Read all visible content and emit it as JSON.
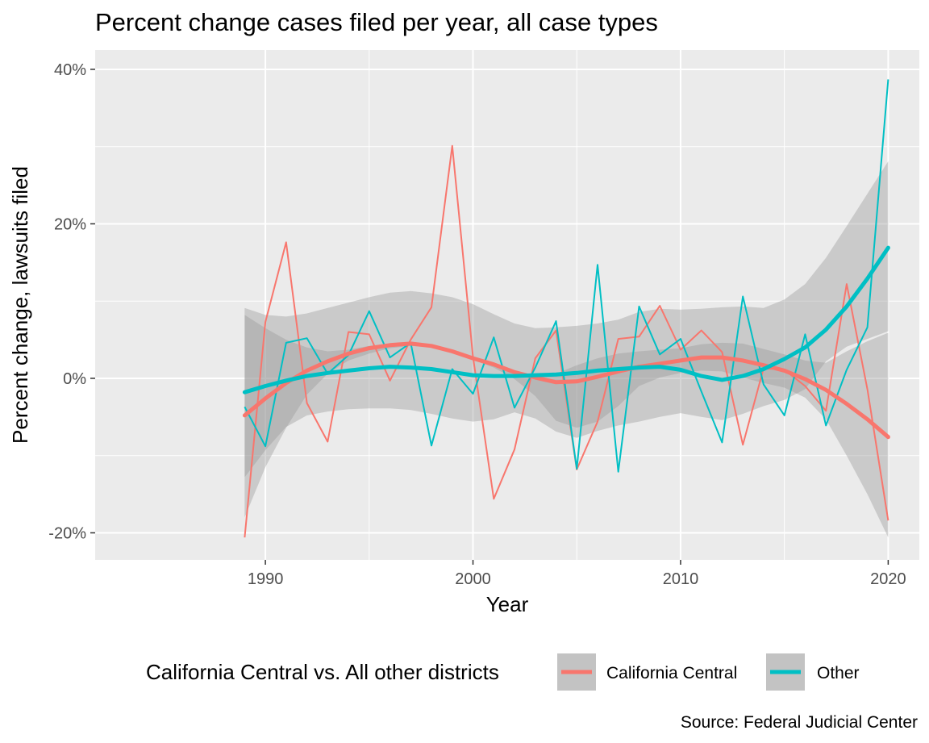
{
  "chart_data": {
    "type": "line",
    "title": "Percent change cases filed per year, all case types",
    "xlabel": "Year",
    "ylabel": "Percent change, lawsuits filed",
    "caption": "Source: Federal Judicial Center",
    "xlim": [
      1981.8,
      2021.5
    ],
    "ylim": [
      -23.5,
      42.5
    ],
    "x_ticks": [
      1990,
      2000,
      2010,
      2020
    ],
    "x_tick_labels": [
      "1990",
      "2000",
      "2010",
      "2020"
    ],
    "y_ticks": [
      -20,
      0,
      20,
      40
    ],
    "y_tick_labels": [
      "-20%",
      "0%",
      "20%",
      "40%"
    ],
    "grid": true,
    "legend": {
      "title": "California Central vs. All other districts",
      "position": "bottom",
      "entries": [
        {
          "label": "California Central",
          "color": "#F8766D"
        },
        {
          "label": "Other",
          "color": "#00BFC4"
        }
      ]
    },
    "x": [
      1989,
      1990,
      1991,
      1992,
      1993,
      1994,
      1995,
      1996,
      1997,
      1998,
      1999,
      2000,
      2001,
      2002,
      2003,
      2004,
      2005,
      2006,
      2007,
      2008,
      2009,
      2010,
      2011,
      2012,
      2013,
      2014,
      2015,
      2016,
      2017,
      2018,
      2019,
      2020
    ],
    "series": [
      {
        "name": "California Central",
        "color": "#F8766D",
        "values": [
          -20.6,
          7.3,
          17.6,
          -3.2,
          -8.2,
          6.0,
          5.7,
          -0.3,
          5.0,
          9.2,
          30.1,
          2.8,
          -15.6,
          -9.2,
          2.6,
          6.2,
          -11.8,
          -5.6,
          5.1,
          5.4,
          9.4,
          3.7,
          6.2,
          3.4,
          -8.6,
          1.3,
          1.1,
          -1.0,
          -4.2,
          12.2,
          -1.4,
          -18.4
        ],
        "smooth": [
          -4.8,
          -2.6,
          -0.6,
          1.0,
          2.2,
          3.2,
          3.9,
          4.3,
          4.5,
          4.2,
          3.5,
          2.6,
          1.8,
          0.8,
          0.1,
          -0.5,
          -0.4,
          0.2,
          0.9,
          1.5,
          1.9,
          2.3,
          2.7,
          2.7,
          2.3,
          1.7,
          1.0,
          -0.1,
          -1.5,
          -3.3,
          -5.3,
          -7.6
        ],
        "band_upper": [
          8.2,
          6.5,
          5.0,
          4.0,
          3.5,
          3.7,
          4.2,
          4.5,
          4.7,
          4.4,
          3.6,
          2.6,
          1.8,
          0.7,
          0.3,
          0.6,
          1.7,
          2.6,
          3.2,
          3.5,
          3.7,
          3.9,
          4.4,
          4.6,
          4.5,
          3.8,
          3.1,
          2.3,
          2.0,
          3.5,
          4.8,
          5.9
        ],
        "band_lower": [
          -18.0,
          -11.5,
          -6.4,
          -2.1,
          0.6,
          2.3,
          3.2,
          3.9,
          4.2,
          4.0,
          3.3,
          2.4,
          1.4,
          -0.1,
          -2.3,
          -5.5,
          -6.4,
          -5.6,
          -3.6,
          -1.0,
          0.1,
          0.7,
          1.0,
          0.9,
          0.1,
          -0.6,
          -1.2,
          -2.5,
          -5.3,
          -10.0,
          -15.0,
          -20.6
        ]
      },
      {
        "name": "Other",
        "color": "#00BFC4",
        "values": [
          -3.7,
          -8.8,
          4.6,
          5.2,
          0.6,
          3.0,
          8.7,
          2.7,
          4.6,
          -8.7,
          1.2,
          -2.0,
          5.3,
          -3.8,
          1.4,
          7.4,
          -11.7,
          14.7,
          -12.1,
          9.3,
          3.1,
          5.1,
          -1.7,
          -8.3,
          10.6,
          -0.8,
          -4.8,
          5.7,
          -6.1,
          1.1,
          6.6,
          38.7
        ],
        "smooth": [
          -1.8,
          -1.0,
          -0.3,
          0.3,
          0.7,
          1.0,
          1.3,
          1.5,
          1.4,
          1.2,
          0.8,
          0.4,
          0.3,
          0.3,
          0.4,
          0.5,
          0.7,
          1.0,
          1.2,
          1.4,
          1.5,
          1.1,
          0.3,
          -0.2,
          0.3,
          1.2,
          2.5,
          4.0,
          6.3,
          9.3,
          12.9,
          16.9
        ],
        "band_upper": [
          9.1,
          8.2,
          8.0,
          8.4,
          9.1,
          9.8,
          10.5,
          11.1,
          11.3,
          11.0,
          10.5,
          9.6,
          8.3,
          7.1,
          6.5,
          6.6,
          6.8,
          7.1,
          7.6,
          8.6,
          9.0,
          8.9,
          9.0,
          9.2,
          9.3,
          9.1,
          10.2,
          12.2,
          15.6,
          19.7,
          23.9,
          28.1
        ],
        "band_lower": [
          -12.8,
          -9.3,
          -6.3,
          -4.8,
          -4.3,
          -4.0,
          -3.9,
          -3.9,
          -4.1,
          -4.6,
          -5.2,
          -5.6,
          -5.3,
          -4.4,
          -5.2,
          -6.9,
          -7.7,
          -6.8,
          -6.1,
          -5.6,
          -5.0,
          -4.5,
          -5.0,
          -5.4,
          -4.6,
          -3.6,
          -2.8,
          -1.4,
          2.2,
          4.1,
          5.1,
          6.1
        ]
      }
    ]
  }
}
